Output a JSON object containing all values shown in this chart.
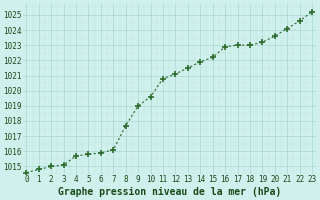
{
  "x": [
    0,
    1,
    2,
    3,
    4,
    5,
    6,
    7,
    8,
    9,
    10,
    11,
    12,
    13,
    14,
    15,
    16,
    17,
    18,
    19,
    20,
    21,
    22,
    23
  ],
  "y": [
    1014.6,
    1014.8,
    1015.0,
    1015.1,
    1015.7,
    1015.8,
    1015.9,
    1016.1,
    1017.7,
    1019.0,
    1019.6,
    1020.8,
    1021.1,
    1021.5,
    1021.9,
    1022.2,
    1022.9,
    1023.0,
    1023.0,
    1023.2,
    1023.6,
    1024.1,
    1024.6,
    1025.2
  ],
  "line_color": "#2d6b2d",
  "marker_color": "#2d6b2d",
  "bg_color": "#cff0ec",
  "grid_color_major": "#a8d8d0",
  "grid_color_minor": "#bce8e0",
  "xlabel": "Graphe pression niveau de la mer (hPa)",
  "xlabel_color": "#1a4a1a",
  "ytick_color": "#1a4a1a",
  "xtick_color": "#1a4a1a",
  "ylim": [
    1014.5,
    1025.8
  ],
  "xlim": [
    -0.3,
    23.3
  ],
  "yticks": [
    1015,
    1016,
    1017,
    1018,
    1019,
    1020,
    1021,
    1022,
    1023,
    1024,
    1025
  ],
  "xticks": [
    0,
    1,
    2,
    3,
    4,
    5,
    6,
    7,
    8,
    9,
    10,
    11,
    12,
    13,
    14,
    15,
    16,
    17,
    18,
    19,
    20,
    21,
    22,
    23
  ],
  "tick_fontsize": 5.5,
  "xlabel_fontsize": 7,
  "linewidth": 0.8,
  "markersize": 4
}
